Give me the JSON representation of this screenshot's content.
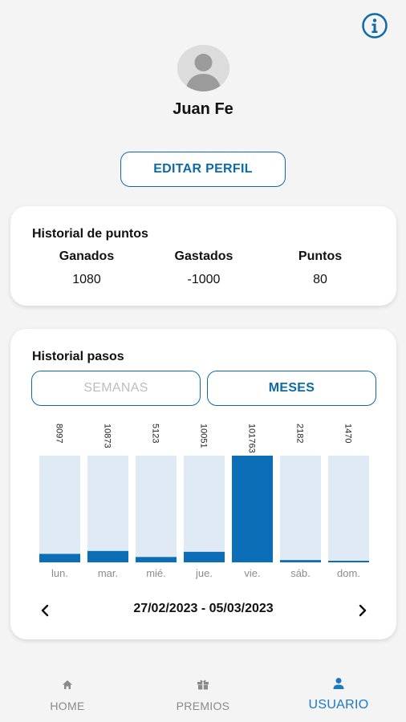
{
  "header": {
    "info_icon": "info-circle-icon",
    "user_name": "Juan Fe",
    "edit_button": "EDITAR PERFIL"
  },
  "points": {
    "title": "Historial de puntos",
    "columns": [
      {
        "label": "Ganados",
        "value": "1080"
      },
      {
        "label": "Gastados",
        "value": "-1000"
      },
      {
        "label": "Puntos",
        "value": "80"
      }
    ]
  },
  "steps": {
    "title": "Historial pasos",
    "tabs": {
      "weeks": "SEMANAS",
      "months": "MESES",
      "active": "months"
    },
    "date_range": "27/02/2023 - 05/03/2023",
    "prev_icon": "chevron-left-icon",
    "next_icon": "chevron-right-icon"
  },
  "chart_data": {
    "type": "bar",
    "categories": [
      "lun.",
      "mar.",
      "mié.",
      "jue.",
      "vie.",
      "sáb.",
      "dom."
    ],
    "values": [
      8097,
      10873,
      5123,
      10051,
      101763,
      2182,
      1470
    ],
    "ylim": [
      0,
      101763
    ],
    "colors": {
      "fill": "#0d6eb8",
      "track": "#dfeaf5"
    }
  },
  "nav": {
    "items": [
      {
        "label": "HOME",
        "icon": "home-icon"
      },
      {
        "label": "PREMIOS",
        "icon": "gift-icon"
      },
      {
        "label": "USUARIO",
        "icon": "user-icon"
      }
    ],
    "active_index": 2
  }
}
